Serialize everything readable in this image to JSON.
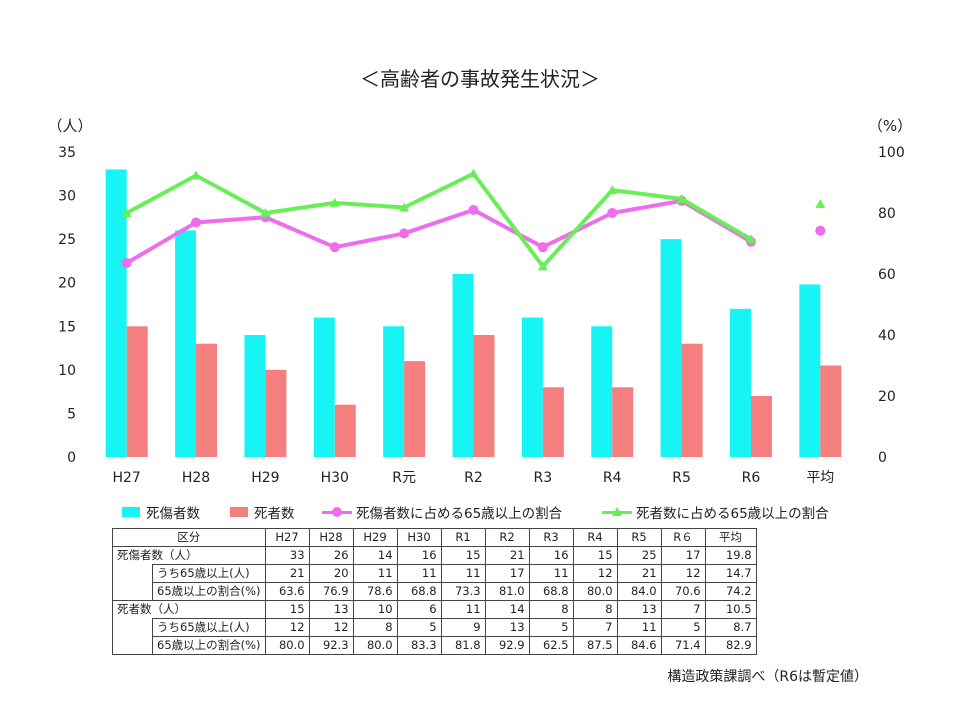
{
  "chart_data": {
    "type": "bar",
    "title": "＜高齢者の事故発生状況＞",
    "y_left_label": "（人）",
    "y_right_label": "（%）",
    "ylim_left": [
      0,
      35
    ],
    "yticks_left": [
      "0",
      "5",
      "10",
      "15",
      "20",
      "25",
      "30",
      "35"
    ],
    "ylim_right": [
      0,
      100
    ],
    "yticks_right": [
      "0",
      "20",
      "40",
      "60",
      "80",
      "100"
    ],
    "categories": [
      "H27",
      "H28",
      "H29",
      "H30",
      "R元",
      "R2",
      "R3",
      "R4",
      "R5",
      "R6",
      "平均"
    ],
    "series": [
      {
        "name": "死傷者数",
        "type": "bar",
        "color": "#16f4f4",
        "axis": "left",
        "values": [
          33,
          26,
          14,
          16,
          15,
          21,
          16,
          15,
          25,
          17,
          19.8
        ]
      },
      {
        "name": "死者数",
        "type": "bar",
        "color": "#f47f7e",
        "axis": "left",
        "values": [
          15,
          13,
          10,
          6,
          11,
          14,
          8,
          8,
          13,
          7,
          10.5
        ]
      },
      {
        "name": "死傷者数に占める65歳以上の割合",
        "type": "line",
        "marker": "circle",
        "color": "#ee6cee",
        "axis": "right",
        "values": [
          63.6,
          76.9,
          78.6,
          68.8,
          73.3,
          81.0,
          68.8,
          80.0,
          84.0,
          70.6,
          74.2
        ]
      },
      {
        "name": "死者数に占める65歳以上の割合",
        "type": "line",
        "marker": "triangle",
        "color": "#69ee5a",
        "axis": "right",
        "values": [
          80.0,
          92.3,
          80.0,
          83.3,
          81.8,
          92.9,
          62.5,
          87.5,
          84.6,
          71.4,
          82.9
        ]
      }
    ],
    "legend_position": "bottom",
    "grid": false
  },
  "table": {
    "header": [
      "区分",
      "H27",
      "H28",
      "H29",
      "H30",
      "R1",
      "R2",
      "R3",
      "R4",
      "R5",
      "R６",
      "平均"
    ],
    "groups": [
      {
        "label": "死傷者数（人）",
        "rows": [
          {
            "label": "",
            "values": [
              "33",
              "26",
              "14",
              "16",
              "15",
              "21",
              "16",
              "15",
              "25",
              "17",
              "19.8"
            ]
          },
          {
            "label": "うち65歳以上(人)",
            "values": [
              "21",
              "20",
              "11",
              "11",
              "11",
              "17",
              "11",
              "12",
              "21",
              "12",
              "14.7"
            ]
          },
          {
            "label": "65歳以上の割合(%)",
            "values": [
              "63.6",
              "76.9",
              "78.6",
              "68.8",
              "73.3",
              "81.0",
              "68.8",
              "80.0",
              "84.0",
              "70.6",
              "74.2"
            ]
          }
        ]
      },
      {
        "label": "死者数（人）",
        "rows": [
          {
            "label": "",
            "values": [
              "15",
              "13",
              "10",
              "6",
              "11",
              "14",
              "8",
              "8",
              "13",
              "7",
              "10.5"
            ]
          },
          {
            "label": "うち65歳以上(人)",
            "values": [
              "12",
              "12",
              "8",
              "5",
              "9",
              "13",
              "5",
              "7",
              "11",
              "5",
              "8.7"
            ]
          },
          {
            "label": "65歳以上の割合(%)",
            "values": [
              "80.0",
              "92.3",
              "80.0",
              "83.3",
              "81.8",
              "92.9",
              "62.5",
              "87.5",
              "84.6",
              "71.4",
              "82.9"
            ]
          }
        ]
      }
    ]
  },
  "source_note": "構造政策課調べ（R6は暫定値）"
}
